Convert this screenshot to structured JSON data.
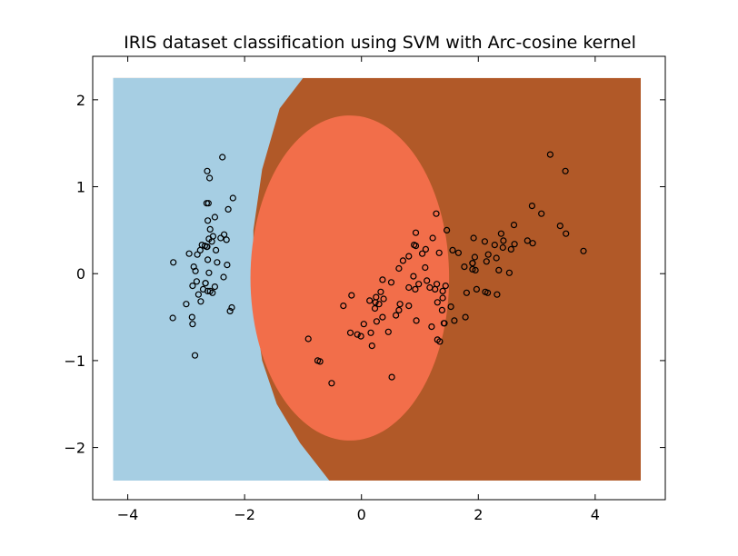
{
  "chart_data": {
    "type": "scatter",
    "title": "IRIS dataset classification using SVM with Arc-cosine kernel",
    "xlabel": "",
    "ylabel": "",
    "xlim": [
      -4.6,
      5.2
    ],
    "ylim": [
      -2.6,
      2.5
    ],
    "xticks": [
      -4,
      -2,
      0,
      2,
      4
    ],
    "yticks": [
      -2,
      -1,
      0,
      1,
      2
    ],
    "grid": false,
    "legend": "none",
    "background_regions": {
      "extent": {
        "x": [
          -4.25,
          4.78
        ],
        "y": [
          -2.38,
          2.25
        ]
      },
      "colors": {
        "class0": "#a6cee3",
        "class1": "#f26e4a",
        "class2": "#b15928"
      },
      "class1_ellipse": {
        "center": [
          -0.2,
          -0.05
        ],
        "radius_x": 1.7,
        "radius_y": 1.87
      },
      "class0_boundary": [
        [
          -1.0,
          2.25
        ],
        [
          -1.4,
          1.9
        ],
        [
          -1.7,
          1.2
        ],
        [
          -1.85,
          0.5
        ],
        [
          -1.85,
          -0.3
        ],
        [
          -1.7,
          -1.0
        ],
        [
          -1.45,
          -1.5
        ],
        [
          -1.05,
          -1.95
        ],
        [
          -0.55,
          -2.38
        ]
      ]
    },
    "marker": {
      "shape": "circle",
      "face": "none",
      "edge": "#000000"
    },
    "points": [
      [
        -2.68,
        0.32
      ],
      [
        -2.71,
        -0.18
      ],
      [
        -2.89,
        -0.14
      ],
      [
        -2.75,
        -0.32
      ],
      [
        -2.73,
        0.33
      ],
      [
        -2.28,
        0.74
      ],
      [
        -2.82,
        -0.09
      ],
      [
        -2.63,
        0.16
      ],
      [
        -2.89,
        -0.58
      ],
      [
        -2.67,
        -0.11
      ],
      [
        -2.51,
        0.65
      ],
      [
        -2.61,
        0.01
      ],
      [
        -2.79,
        -0.24
      ],
      [
        -3.23,
        -0.51
      ],
      [
        -2.64,
        1.18
      ],
      [
        -2.38,
        1.34
      ],
      [
        -2.62,
        0.81
      ],
      [
        -2.65,
        0.31
      ],
      [
        -2.2,
        0.87
      ],
      [
        -2.59,
        0.51
      ],
      [
        -2.31,
        0.39
      ],
      [
        -2.54,
        0.43
      ],
      [
        -3.22,
        0.13
      ],
      [
        -2.3,
        0.1
      ],
      [
        -2.36,
        -0.04
      ],
      [
        -2.51,
        -0.15
      ],
      [
        -2.47,
        0.13
      ],
      [
        -2.56,
        0.37
      ],
      [
        -2.64,
        0.31
      ],
      [
        -2.63,
        -0.2
      ],
      [
        -2.59,
        -0.2
      ],
      [
        -2.41,
        0.41
      ],
      [
        -2.65,
        0.81
      ],
      [
        -2.6,
        1.1
      ],
      [
        -2.67,
        -0.11
      ],
      [
        -2.87,
        0.08
      ],
      [
        -2.63,
        0.61
      ],
      [
        -2.81,
        0.22
      ],
      [
        -3.0,
        -0.35
      ],
      [
        -2.9,
        -0.5
      ],
      [
        -2.76,
        0.27
      ],
      [
        -2.95,
        0.23
      ],
      [
        -2.35,
        0.45
      ],
      [
        -2.22,
        -0.39
      ],
      [
        -2.61,
        0.4
      ],
      [
        -2.84,
        0.03
      ],
      [
        -2.85,
        -0.94
      ],
      [
        -2.49,
        0.27
      ],
      [
        -2.25,
        -0.43
      ],
      [
        -2.55,
        -0.22
      ],
      [
        1.28,
        0.69
      ],
      [
        0.93,
        0.32
      ],
      [
        1.46,
        0.5
      ],
      [
        0.18,
        -0.83
      ],
      [
        1.09,
        0.07
      ],
      [
        0.64,
        -0.42
      ],
      [
        1.1,
        0.28
      ],
      [
        -0.75,
        -1.0
      ],
      [
        1.04,
        0.23
      ],
      [
        -0.01,
        -0.72
      ],
      [
        -0.51,
        -1.26
      ],
      [
        0.51,
        -0.1
      ],
      [
        0.26,
        -0.55
      ],
      [
        0.98,
        -0.12
      ],
      [
        -0.17,
        -0.25
      ],
      [
        0.93,
        0.47
      ],
      [
        0.66,
        -0.35
      ],
      [
        0.24,
        -0.33
      ],
      [
        0.94,
        -0.54
      ],
      [
        0.04,
        -0.58
      ],
      [
        1.12,
        -0.08
      ],
      [
        0.36,
        -0.07
      ],
      [
        1.3,
        -0.33
      ],
      [
        0.92,
        -0.18
      ],
      [
        0.71,
        0.15
      ],
      [
        0.9,
        0.33
      ],
      [
        1.33,
        0.24
      ],
      [
        1.56,
        0.27
      ],
      [
        0.81,
        -0.16
      ],
      [
        -0.31,
        -0.37
      ],
      [
        -0.07,
        -0.7
      ],
      [
        -0.19,
        -0.68
      ],
      [
        0.14,
        -0.31
      ],
      [
        1.38,
        -0.42
      ],
      [
        0.59,
        -0.48
      ],
      [
        0.81,
        0.2
      ],
      [
        1.22,
        0.41
      ],
      [
        0.81,
        -0.37
      ],
      [
        0.25,
        -0.27
      ],
      [
        0.16,
        -0.68
      ],
      [
        0.46,
        -0.67
      ],
      [
        0.89,
        -0.03
      ],
      [
        0.23,
        -0.4
      ],
      [
        -0.71,
        -1.01
      ],
      [
        0.36,
        -0.5
      ],
      [
        0.33,
        -0.21
      ],
      [
        0.38,
        -0.29
      ],
      [
        0.64,
        0.06
      ],
      [
        -0.91,
        -0.75
      ],
      [
        0.3,
        -0.35
      ],
      [
        2.53,
        0.01
      ],
      [
        1.41,
        -0.57
      ],
      [
        2.62,
        0.34
      ],
      [
        1.97,
        -0.18
      ],
      [
        2.35,
        0.04
      ],
      [
        3.4,
        0.55
      ],
      [
        0.52,
        -1.19
      ],
      [
        2.93,
        0.35
      ],
      [
        2.32,
        -0.24
      ],
      [
        2.92,
        0.78
      ],
      [
        1.66,
        0.24
      ],
      [
        1.8,
        -0.22
      ],
      [
        2.17,
        0.22
      ],
      [
        1.34,
        -0.78
      ],
      [
        1.59,
        -0.54
      ],
      [
        1.9,
        0.12
      ],
      [
        1.95,
        0.04
      ],
      [
        3.49,
        1.18
      ],
      [
        3.8,
        0.26
      ],
      [
        1.3,
        -0.76
      ],
      [
        2.43,
        0.38
      ],
      [
        1.2,
        -0.61
      ],
      [
        3.5,
        0.46
      ],
      [
        1.39,
        -0.2
      ],
      [
        2.28,
        0.33
      ],
      [
        2.61,
        0.56
      ],
      [
        1.26,
        -0.18
      ],
      [
        1.29,
        -0.12
      ],
      [
        2.12,
        -0.21
      ],
      [
        2.39,
        0.46
      ],
      [
        2.84,
        0.38
      ],
      [
        3.23,
        1.37
      ],
      [
        2.16,
        -0.22
      ],
      [
        1.44,
        -0.14
      ],
      [
        1.78,
        -0.5
      ],
      [
        3.08,
        0.69
      ],
      [
        2.14,
        0.14
      ],
      [
        1.9,
        0.05
      ],
      [
        1.17,
        -0.16
      ],
      [
        2.11,
        0.37
      ],
      [
        2.31,
        0.18
      ],
      [
        1.92,
        0.41
      ],
      [
        1.42,
        -0.57
      ],
      [
        2.56,
        0.28
      ],
      [
        2.42,
        0.3
      ],
      [
        1.94,
        0.19
      ],
      [
        1.53,
        -0.38
      ],
      [
        1.76,
        0.08
      ],
      [
        1.9,
        0.12
      ],
      [
        1.39,
        -0.28
      ]
    ]
  }
}
